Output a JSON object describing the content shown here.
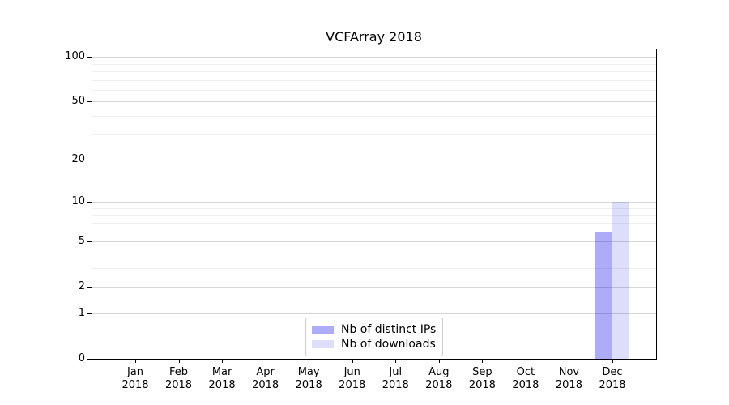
{
  "chart_data": {
    "type": "bar",
    "title": "VCFArray 2018",
    "categories": [
      "Jan",
      "Feb",
      "Mar",
      "Apr",
      "May",
      "Jun",
      "Jul",
      "Aug",
      "Sep",
      "Oct",
      "Nov",
      "Dec"
    ],
    "year_label": "2018",
    "series": [
      {
        "name": "Nb of distinct IPs",
        "color": "#0202eb",
        "alpha": 0.33,
        "values": [
          0,
          0,
          0,
          0,
          0,
          0,
          0,
          0,
          0,
          0,
          0,
          6
        ]
      },
      {
        "name": "Nb of downloads",
        "color": "#0202eb",
        "alpha": 0.135,
        "values": [
          0,
          0,
          0,
          0,
          0,
          0,
          0,
          0,
          0,
          0,
          0,
          10
        ]
      }
    ],
    "xlabel": "",
    "ylabel": "",
    "y_scale": "log10(1+y)",
    "ylim": [
      0,
      113
    ],
    "y_major_ticks": [
      0,
      1,
      2,
      5,
      10,
      20,
      50,
      100
    ],
    "y_minor_ticks": [
      3,
      4,
      6,
      7,
      8,
      9,
      30,
      40,
      60,
      70,
      80,
      90
    ],
    "grid": "horizontal major+minor",
    "legend_position": "lower center",
    "colors": {
      "grid_major": "#d6d6d6",
      "grid_minor": "#efefef",
      "spine": "#000000",
      "background": "#ffffff"
    }
  }
}
